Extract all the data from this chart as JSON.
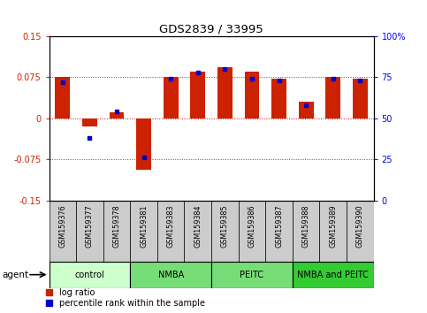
{
  "title": "GDS2839 / 33995",
  "samples": [
    "GSM159376",
    "GSM159377",
    "GSM159378",
    "GSM159381",
    "GSM159383",
    "GSM159384",
    "GSM159385",
    "GSM159386",
    "GSM159387",
    "GSM159388",
    "GSM159389",
    "GSM159390"
  ],
  "log_ratios": [
    0.075,
    -0.015,
    0.01,
    -0.095,
    0.076,
    0.085,
    0.093,
    0.085,
    0.072,
    0.03,
    0.076,
    0.072
  ],
  "percentile_ranks": [
    72,
    38,
    54,
    26,
    74,
    78,
    80,
    74,
    73,
    58,
    74,
    73
  ],
  "groups": [
    {
      "label": "control",
      "start": 0,
      "end": 3
    },
    {
      "label": "NMBA",
      "start": 3,
      "end": 6
    },
    {
      "label": "PEITC",
      "start": 6,
      "end": 9
    },
    {
      "label": "NMBA and PEITC",
      "start": 9,
      "end": 12
    }
  ],
  "group_colors": [
    "#ccffcc",
    "#77dd77",
    "#77dd77",
    "#33cc33"
  ],
  "ylim": [
    -0.15,
    0.15
  ],
  "yticks": [
    -0.15,
    -0.075,
    0.0,
    0.075,
    0.15
  ],
  "yticklabels_left": [
    "-0.15",
    "-0.075",
    "0",
    "0.075",
    "0.15"
  ],
  "yticklabels_right": [
    "0",
    "25",
    "50",
    "75",
    "100%"
  ],
  "bar_color": "#cc2200",
  "dot_color": "#0000cc",
  "bar_width": 0.55,
  "hline_color": "#cc0000",
  "dotted_line_color": "#555555",
  "sample_bg_color": "#cccccc",
  "legend_labels": [
    "log ratio",
    "percentile rank within the sample"
  ]
}
